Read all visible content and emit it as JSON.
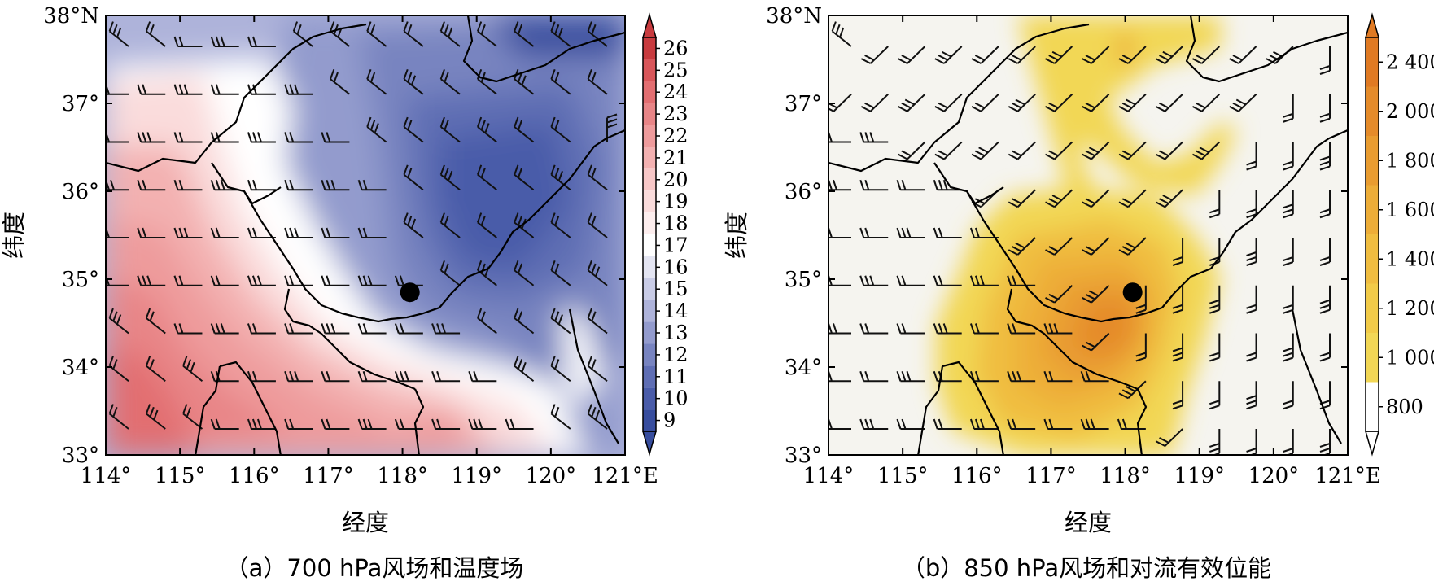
{
  "panel_a": {
    "caption": "（a）700 hPa风场和温度场",
    "xlabel": "经度",
    "ylabel": "纬度",
    "x_ticks": [
      "114°",
      "115°",
      "116°",
      "117°",
      "118°",
      "119°",
      "120°",
      "121°E"
    ],
    "y_ticks": [
      "38°N",
      "37°",
      "36°",
      "35°",
      "34°",
      "33°"
    ],
    "colorbar_labels": [
      "26",
      "25",
      "24",
      "23",
      "22",
      "21",
      "20",
      "19",
      "18",
      "17",
      "16",
      "15",
      "14",
      "13",
      "12",
      "11",
      "10",
      "9"
    ],
    "colorbar_colors": [
      "#c83b3f",
      "#d8565a",
      "#e26e71",
      "#e88587",
      "#ee9b9c",
      "#f3b1b1",
      "#f7c7c7",
      "#fadcdc",
      "#fdeeee",
      "#ffffff",
      "#e4e5f2",
      "#c9cce6",
      "#aeb3da",
      "#939bcd",
      "#7884c0",
      "#5f6eb4",
      "#4a5ca9",
      "#374d9e"
    ],
    "station": {
      "lon": 118.1,
      "lat": 34.85
    },
    "colorbar_icon": "triangle-arrow-ends"
  },
  "panel_b": {
    "caption": "（b）850 hPa风场和对流有效位能",
    "xlabel": "经度",
    "ylabel": "纬度",
    "x_ticks": [
      "114°",
      "115°",
      "116°",
      "117°",
      "118°",
      "119°",
      "120°",
      "121°E"
    ],
    "y_ticks": [
      "38°N",
      "37°",
      "36°",
      "35°",
      "34°",
      "33°"
    ],
    "colorbar_labels": [
      "2 400",
      "2 000",
      "1 800",
      "1 600",
      "1 400",
      "1 200",
      "1 000",
      "800"
    ],
    "colorbar_colors": [
      "#e07a23",
      "#e58b2a",
      "#e99c30",
      "#edad38",
      "#f0bd40",
      "#f2cb48",
      "#f2d755",
      "#ffffff"
    ],
    "station": {
      "lon": 118.1,
      "lat": 34.85
    },
    "colorbar_icon": "triangle-arrow-ends"
  },
  "wind_field_a": [
    [
      "nw",
      "nw",
      "w",
      "w",
      "w",
      "nw",
      "nw",
      "nw",
      "nw",
      "nw",
      "nw",
      "nw",
      "nw",
      "nw"
    ],
    [
      "w",
      "w",
      "w",
      "w",
      "w",
      "w",
      "nw",
      "nw",
      "nw",
      "nw",
      "nw",
      "nw",
      "nw",
      "nw"
    ],
    [
      "w",
      "w",
      "w",
      "w",
      "w",
      "w",
      "w",
      "nw",
      "nw",
      "nw",
      "nw",
      "nw",
      "nw",
      "n"
    ],
    [
      "w",
      "w",
      "w",
      "w",
      "w",
      "w",
      "w",
      "w",
      "nw",
      "nw",
      "nw",
      "nw",
      "nw",
      "nw"
    ],
    [
      "w",
      "w",
      "w",
      "w",
      "w",
      "w",
      "w",
      "w",
      "nw",
      "nw",
      "nw",
      "nw",
      "nw",
      "nw"
    ],
    [
      "w",
      "w",
      "w",
      "w",
      "w",
      "w",
      "w",
      "w",
      "w",
      "nw",
      "nw",
      "nw",
      "nw",
      "nw"
    ],
    [
      "nw",
      "nw",
      "w",
      "w",
      "w",
      "w",
      "w",
      "w",
      "w",
      "w",
      "nw",
      "nw",
      "nw",
      "nw"
    ],
    [
      "nw",
      "nw",
      "nw",
      "w",
      "w",
      "w",
      "w",
      "w",
      "w",
      "w",
      "w",
      "nw",
      "nw",
      "nw"
    ],
    [
      "nw",
      "nw",
      "nw",
      "w",
      "w",
      "w",
      "w",
      "w",
      "w",
      "w",
      "w",
      "w",
      "nw",
      "nw"
    ]
  ],
  "wind_field_b": [
    [
      "nw",
      "sw",
      "sw",
      "sw",
      "sw",
      "sw",
      "sw",
      "sw",
      "sw",
      "sw",
      "sw",
      "sw",
      "sw",
      "s"
    ],
    [
      "sw",
      "sw",
      "sw",
      "sw",
      "sw",
      "sw",
      "sw",
      "sw",
      "sw",
      "sw",
      "sw",
      "sw",
      "s",
      "s"
    ],
    [
      "w",
      "w",
      "sw",
      "sw",
      "sw",
      "sw",
      "sw",
      "sw",
      "sw",
      "sw",
      "sw",
      "s",
      "s",
      "s"
    ],
    [
      "w",
      "w",
      "w",
      "w",
      "sw",
      "sw",
      "sw",
      "sw",
      "sw",
      "sw",
      "s",
      "s",
      "s",
      "s"
    ],
    [
      "w",
      "w",
      "w",
      "w",
      "w",
      "sw",
      "sw",
      "sw",
      "sw",
      "s",
      "s",
      "s",
      "s",
      "s"
    ],
    [
      "w",
      "w",
      "w",
      "w",
      "w",
      "w",
      "sw",
      "sw",
      "s",
      "s",
      "s",
      "s",
      "s",
      "s"
    ],
    [
      "w",
      "w",
      "w",
      "w",
      "w",
      "w",
      "w",
      "sw",
      "s",
      "s",
      "s",
      "s",
      "s",
      "s"
    ],
    [
      "w",
      "w",
      "w",
      "w",
      "w",
      "w",
      "w",
      "w",
      "sw",
      "s",
      "s",
      "s",
      "s",
      "s"
    ],
    [
      "w",
      "w",
      "w",
      "w",
      "w",
      "w",
      "w",
      "w",
      "w",
      "sw",
      "s",
      "s",
      "s",
      "s"
    ]
  ]
}
